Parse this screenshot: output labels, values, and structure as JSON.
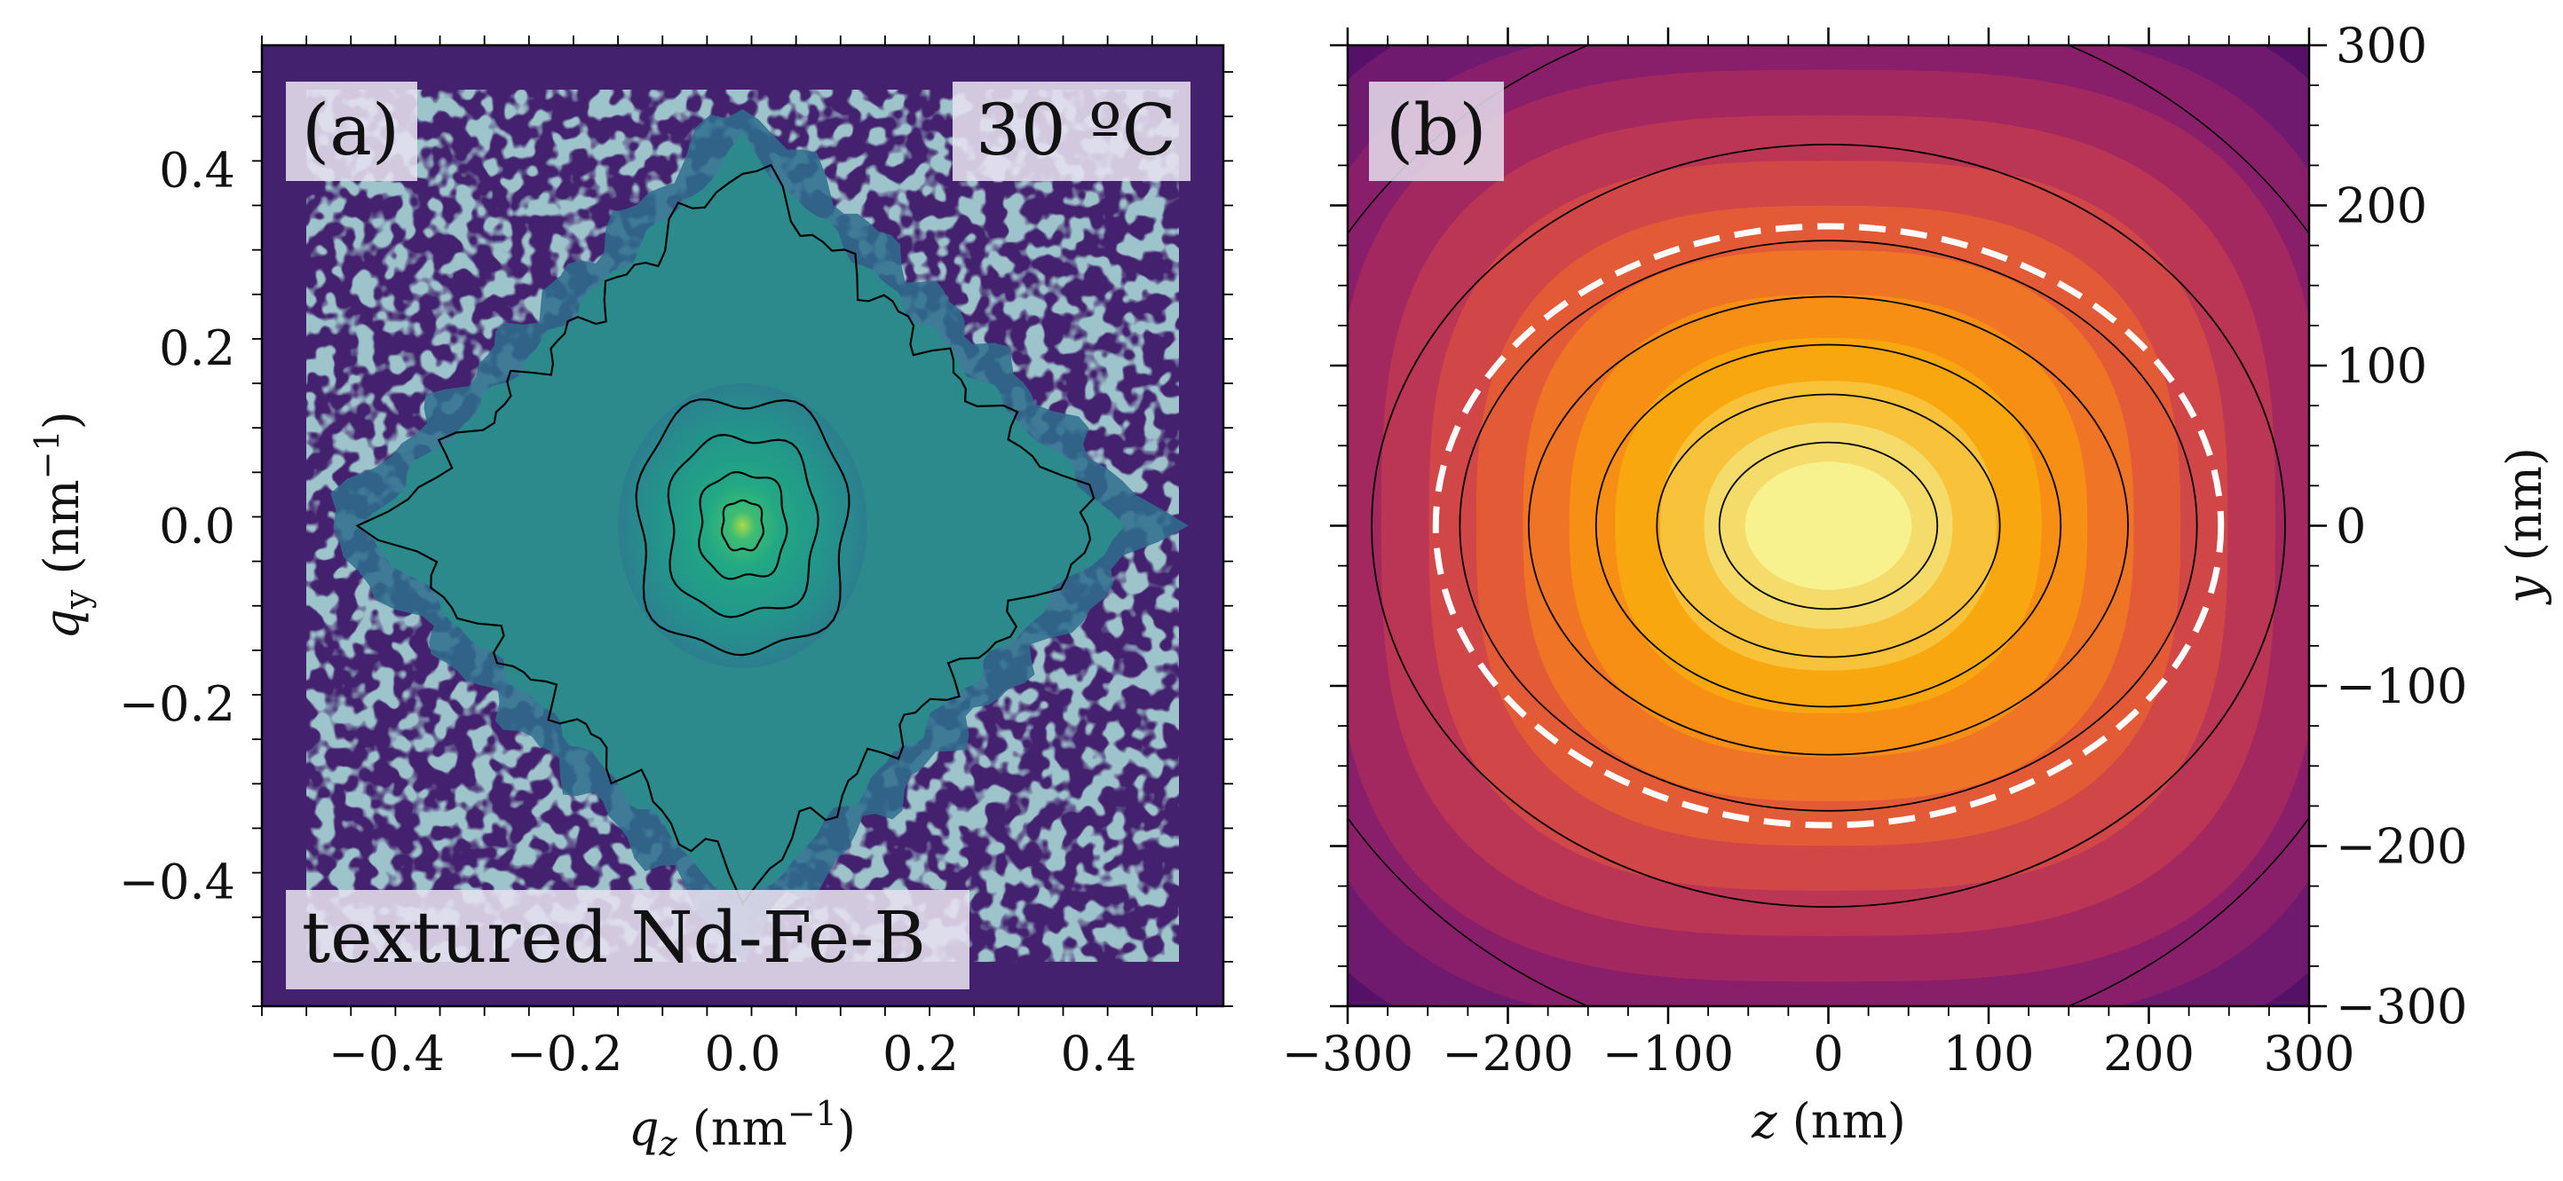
{
  "chart_data": [
    {
      "type": "heatmap",
      "panel_label": "(a)",
      "annotations": {
        "temperature": "30 ºC",
        "sample": "textured Nd-Fe-B"
      },
      "xlabel": {
        "symbol": "q",
        "sub": "z",
        "unit_prefix": " (nm",
        "exp": "−1",
        "unit_suffix": ")"
      },
      "ylabel": {
        "symbol": "q",
        "sub": "y",
        "unit_prefix": " (nm",
        "exp": "−1",
        "unit_suffix": ")"
      },
      "xlim": [
        -0.54,
        0.54
      ],
      "ylim": [
        -0.54,
        0.54
      ],
      "xticks": [
        -0.4,
        -0.2,
        0.0,
        0.2,
        0.4
      ],
      "xtick_labels": [
        "−0.4",
        "−0.2",
        "0.0",
        "0.2",
        "0.4"
      ],
      "yticks": [
        -0.4,
        -0.2,
        0.0,
        0.2,
        0.4
      ],
      "ytick_labels": [
        "−0.4",
        "−0.2",
        "0.0",
        "0.2",
        "0.4"
      ],
      "colormap": "viridis",
      "contour_levels_rel": [
        0.9,
        0.75,
        0.55,
        0.35
      ],
      "features": {
        "central_peak_halfwidth": 0.1,
        "diamond_halfwidth": 0.45,
        "data_extent": 0.49
      }
    },
    {
      "type": "heatmap",
      "panel_label": "(b)",
      "xlabel": {
        "symbol": "z",
        "unit": " (nm)"
      },
      "ylabel": {
        "symbol": "y",
        "unit": " (nm)"
      },
      "xlim": [
        -300,
        300
      ],
      "ylim": [
        -300,
        300
      ],
      "xticks": [
        -300,
        -200,
        -100,
        0,
        100,
        200,
        300
      ],
      "xtick_labels": [
        "−300",
        "−200",
        "−100",
        "0",
        "100",
        "200",
        "300"
      ],
      "yticks": [
        -300,
        -200,
        -100,
        0,
        100,
        200,
        300
      ],
      "ytick_labels": [
        "−300",
        "−200",
        "−100",
        "0",
        "100",
        "200",
        "300"
      ],
      "colormap": "inferno",
      "contour_semi_axes_z": [
        68,
        107,
        145,
        187,
        230,
        285
      ],
      "contour_semi_axes_y": [
        52,
        82,
        113,
        143,
        178,
        238
      ],
      "dashed_ellipse": {
        "semi_axis_z": 245,
        "semi_axis_y": 187
      }
    }
  ],
  "colors": {
    "viridis_background": "#44216e",
    "inferno_core": "#f7f28e",
    "dashed_ellipse": "#ffffff",
    "contour": "#000000",
    "label_box": "#e6e0ef"
  }
}
